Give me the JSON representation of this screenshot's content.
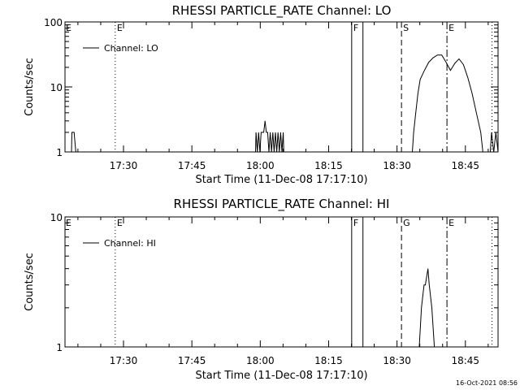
{
  "footer_timestamp": "16-Oct-2021 08:56",
  "chart_data": [
    {
      "type": "line",
      "title": "RHESSI PARTICLE_RATE Channel: LO",
      "xlabel": "Start Time (11-Dec-08 17:17:10)",
      "ylabel": "Counts/sec",
      "yscale": "log",
      "ylim": [
        1,
        100
      ],
      "y_ticks": [
        "1",
        "10",
        "100"
      ],
      "x_ticks": [
        "17:30",
        "17:45",
        "18:00",
        "18:15",
        "18:30",
        "18:45"
      ],
      "legend_label": "Channel: LO",
      "legend_position": "top-left",
      "series": [
        {
          "name": "Channel: LO",
          "points": [
            [
              1.5,
              1
            ],
            [
              1.6,
              2
            ],
            [
              2.1,
              2
            ],
            [
              2.5,
              1
            ],
            [
              3.0,
              0.6
            ],
            [
              43.9,
              0.6
            ],
            [
              44.0,
              1
            ],
            [
              44.1,
              2
            ],
            [
              44.4,
              1
            ],
            [
              44.7,
              2
            ],
            [
              45.0,
              1
            ],
            [
              45.3,
              2
            ],
            [
              45.6,
              2
            ],
            [
              45.9,
              2
            ],
            [
              46.2,
              3
            ],
            [
              46.5,
              2
            ],
            [
              46.8,
              2
            ],
            [
              47.1,
              1
            ],
            [
              47.4,
              2
            ],
            [
              47.7,
              1
            ],
            [
              48.0,
              2
            ],
            [
              48.3,
              1
            ],
            [
              48.6,
              2
            ],
            [
              48.9,
              1
            ],
            [
              49.2,
              2
            ],
            [
              49.5,
              1
            ],
            [
              49.8,
              2
            ],
            [
              50.1,
              1
            ],
            [
              50.4,
              2
            ],
            [
              50.6,
              0.6
            ],
            [
              79.6,
              0.6
            ],
            [
              80.2,
              1
            ],
            [
              80.5,
              2
            ],
            [
              81.0,
              4
            ],
            [
              81.5,
              8
            ],
            [
              82.0,
              13
            ],
            [
              83.0,
              18
            ],
            [
              84.0,
              24
            ],
            [
              85.0,
              28
            ],
            [
              86.0,
              31
            ],
            [
              87.0,
              31
            ],
            [
              88.0,
              24
            ],
            [
              89.0,
              18
            ],
            [
              90.0,
              23
            ],
            [
              90.5,
              25
            ],
            [
              91.0,
              27
            ],
            [
              92.0,
              22
            ],
            [
              93.0,
              14
            ],
            [
              94.0,
              8
            ],
            [
              95.0,
              4
            ],
            [
              96.0,
              2
            ],
            [
              96.5,
              1
            ],
            [
              97.0,
              0.6
            ],
            [
              98.0,
              0.6
            ],
            [
              98.5,
              2
            ],
            [
              99.0,
              1
            ],
            [
              99.5,
              2
            ],
            [
              100.0,
              1
            ]
          ]
        }
      ],
      "markers": [
        {
          "label": "E",
          "style": "dotted",
          "x": 11.6
        },
        {
          "label": "F",
          "style": "solid",
          "x": 66.2
        },
        {
          "label": "",
          "style": "solid",
          "x": 68.8
        },
        {
          "label": "S",
          "style": "dashed",
          "x": 77.7
        },
        {
          "label": "E",
          "style": "dashdot",
          "x": 88.2
        },
        {
          "label": "",
          "style": "dotted",
          "x": 98.6
        }
      ],
      "start_marker_label": "E"
    },
    {
      "type": "line",
      "title": "RHESSI PARTICLE_RATE Channel: HI",
      "xlabel": "Start Time (11-Dec-08 17:17:10)",
      "ylabel": "Counts/sec",
      "yscale": "log",
      "ylim": [
        1,
        10
      ],
      "y_ticks": [
        "1",
        "10"
      ],
      "x_ticks": [
        "17:30",
        "17:45",
        "18:00",
        "18:15",
        "18:30",
        "18:45"
      ],
      "legend_label": "Channel: HI",
      "legend_position": "top-left",
      "series": [
        {
          "name": "Channel: HI",
          "points": [
            [
              81.0,
              0.9
            ],
            [
              81.8,
              1
            ],
            [
              82.3,
              2
            ],
            [
              82.9,
              3
            ],
            [
              83.2,
              3
            ],
            [
              83.8,
              4
            ],
            [
              84.1,
              3
            ],
            [
              84.7,
              2
            ],
            [
              85.3,
              1
            ],
            [
              85.7,
              0.9
            ]
          ]
        }
      ],
      "markers": [
        {
          "label": "E",
          "style": "dotted",
          "x": 11.6
        },
        {
          "label": "F",
          "style": "solid",
          "x": 66.2
        },
        {
          "label": "",
          "style": "solid",
          "x": 68.8
        },
        {
          "label": "G",
          "style": "dashed",
          "x": 77.7
        },
        {
          "label": "E",
          "style": "dashdot",
          "x": 88.2
        },
        {
          "label": "",
          "style": "dotted",
          "x": 98.6
        }
      ],
      "start_marker_label": "E"
    }
  ]
}
